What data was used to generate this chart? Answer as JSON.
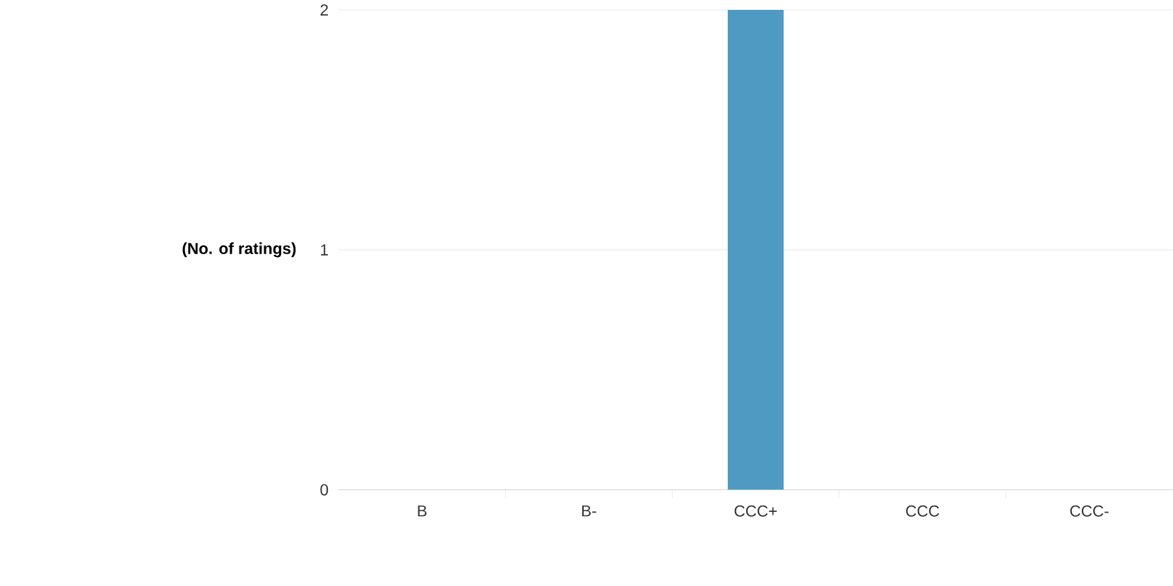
{
  "chart_data": {
    "type": "bar",
    "ylabel": "(No. of ratings)",
    "categories": [
      "B",
      "B-",
      "CCC+",
      "CCC",
      "CCC-"
    ],
    "values": [
      0,
      0,
      2,
      0,
      0
    ],
    "color": "#4e9ac2",
    "ylim": [
      0,
      2
    ],
    "yticks": [
      0,
      1,
      2
    ],
    "grid": "y"
  }
}
